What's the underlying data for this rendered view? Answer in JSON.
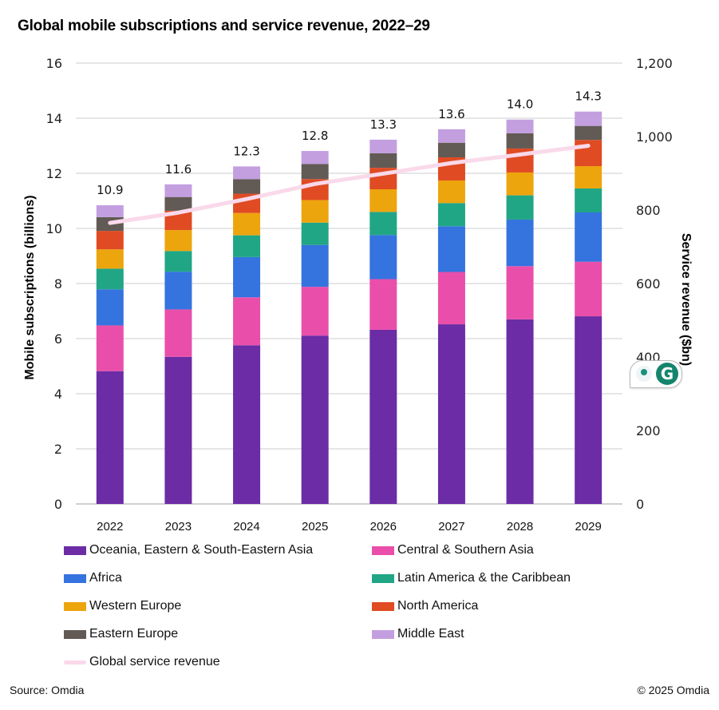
{
  "chart_data": {
    "type": "bar",
    "stacked": true,
    "title": "Global mobile subscriptions and service revenue, 2022–29",
    "xlabel": "",
    "ylabel": "Mobile subscriptions (billions)",
    "y2label": "Service revenue ($bn)",
    "ylim": [
      0,
      16
    ],
    "y2lim": [
      0,
      1200
    ],
    "yticks": [
      0,
      2,
      4,
      6,
      8,
      10,
      12,
      14,
      16
    ],
    "ytick_labels": [
      "0",
      "2",
      "4",
      "6",
      "8",
      "10",
      "12",
      "14",
      "16"
    ],
    "y2ticks": [
      0,
      200,
      400,
      600,
      800,
      1000,
      1200
    ],
    "y2tick_labels": [
      "0",
      "200",
      "400",
      "600",
      "800",
      "1,000",
      "1,200"
    ],
    "grid": true,
    "legend_position": "bottom",
    "categories": [
      "2022",
      "2023",
      "2024",
      "2025",
      "2026",
      "2027",
      "2028",
      "2029"
    ],
    "totals_labels": [
      "10.9",
      "11.6",
      "12.3",
      "12.8",
      "13.3",
      "13.6",
      "14.0",
      "14.3"
    ],
    "series": [
      {
        "name": "Oceania, Eastern & South-Eastern Asia",
        "color": "#6B2CA5",
        "values": [
          4.82,
          5.34,
          5.76,
          6.11,
          6.32,
          6.52,
          6.7,
          6.81
        ]
      },
      {
        "name": "Central & Southern Asia",
        "color": "#E94FAA",
        "values": [
          1.66,
          1.72,
          1.74,
          1.77,
          1.84,
          1.9,
          1.93,
          1.98
        ]
      },
      {
        "name": "Africa",
        "color": "#3573DF",
        "values": [
          1.31,
          1.37,
          1.46,
          1.52,
          1.6,
          1.66,
          1.69,
          1.79
        ]
      },
      {
        "name": "Latin America & the Caribbean",
        "color": "#20A685",
        "values": [
          0.75,
          0.75,
          0.79,
          0.81,
          0.84,
          0.84,
          0.88,
          0.87
        ]
      },
      {
        "name": "Western Europe",
        "color": "#EDA50E",
        "values": [
          0.7,
          0.76,
          0.81,
          0.82,
          0.82,
          0.82,
          0.83,
          0.81
        ]
      },
      {
        "name": "North America",
        "color": "#E04B23",
        "values": [
          0.67,
          0.7,
          0.7,
          0.76,
          0.78,
          0.84,
          0.87,
          0.95
        ]
      },
      {
        "name": "Eastern Europe",
        "color": "#625A55",
        "values": [
          0.5,
          0.5,
          0.53,
          0.55,
          0.53,
          0.53,
          0.55,
          0.51
        ]
      },
      {
        "name": "Middle East",
        "color": "#C39FE0",
        "values": [
          0.43,
          0.46,
          0.46,
          0.47,
          0.49,
          0.49,
          0.5,
          0.52
        ]
      }
    ],
    "line_series": {
      "name": "Global service revenue",
      "axis": "right",
      "color": "#F9D9EA",
      "values": [
        765,
        793,
        830,
        871,
        899,
        928,
        951,
        975
      ]
    }
  },
  "footer": {
    "source": "Source: Omdia",
    "copyright": "© 2025 Omdia"
  },
  "overlay": {
    "widget": "grammarly-widget",
    "logo_letter": "G"
  }
}
